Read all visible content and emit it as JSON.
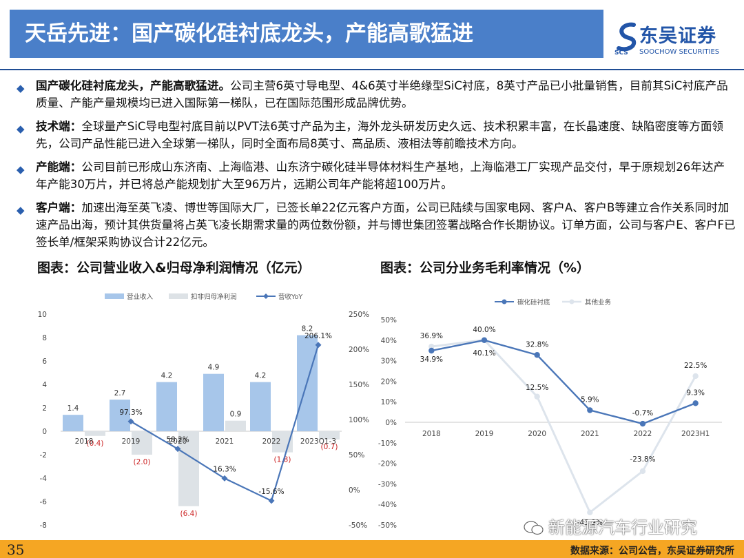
{
  "header": {
    "title": "天岳先进：国产碳化硅衬底龙头，产能高歌猛进",
    "logo_cn": "东吴证券",
    "logo_en": "SOOCHOW SECURITIES",
    "logo_abbr": "SCS"
  },
  "bullets": [
    {
      "lead": "国产碳化硅衬底龙头，产能高歌猛进。",
      "text": "公司主营6英寸导电型、4&6英寸半绝缘型SiC衬底，8英寸产品已小批量销售，目前其SiC衬底产品质量、产能产量规模均已进入国际第一梯队，已在国际范围形成品牌优势。"
    },
    {
      "lead": "技术端：",
      "text": "全球量产SiC导电型衬底目前以PVT法6英寸产品为主，海外龙头研发历史久远、技术积累丰富，在长晶速度、缺陷密度等方面领先，公司产品性能已进入全球第一梯队，同时全面布局8英寸、高品质、液相法等前瞻技术方向。"
    },
    {
      "lead": "产能端：",
      "text": "公司目前已形成山东济南、上海临港、山东济宁碳化硅半导体材料生产基地，上海临港工厂实现产品交付，早于原规划26年达产年产能30万片，并已将总产能规划扩大至96万片，远期公司年产能将超100万片。"
    },
    {
      "lead": "客户端：",
      "text": "加速出海至英飞凌、博世等国际大厂，已签长单22亿元客户方面，公司已陆续与国家电网、客户A、客户B等建立合作关系同时加速产品出海，预计其供货量将占英飞凌长期需求量的两位数份额，并与博世集团签署战略合作长期协议。订单方面，公司与客户E、客户F已签长单/框架采购协议合计22亿元。"
    }
  ],
  "sections": {
    "left_title": "图表：公司营业收入&归母净利润情况（亿元）",
    "right_title": "图表：公司分业务毛利率情况（%）"
  },
  "chart_data": [
    {
      "type": "bar",
      "categories": [
        "2018",
        "2019",
        "2020",
        "2021",
        "2022",
        "2023Q1-3"
      ],
      "series": [
        {
          "name": "营业收入",
          "kind": "bar",
          "axis": "left",
          "values": [
            1.4,
            2.7,
            4.2,
            4.9,
            4.2,
            8.2
          ],
          "labels": [
            "1.4",
            "2.7",
            "4.2",
            "4.9",
            "4.2",
            "8.2"
          ],
          "color": "#a7c6ea"
        },
        {
          "name": "扣非归母净利润",
          "kind": "bar",
          "axis": "left",
          "values": [
            -0.4,
            -2.0,
            -6.4,
            0.9,
            -1.8,
            -0.7
          ],
          "labels": [
            "(0.4)",
            "(2.0)",
            "(6.4)",
            "0.9",
            "(1.8)",
            "(0.7)"
          ],
          "color": "#dde2e6"
        },
        {
          "name": "营收YoY",
          "kind": "line",
          "axis": "right",
          "values": [
            null,
            97.3,
            58.2,
            16.3,
            -15.6,
            206.1
          ],
          "labels": [
            "",
            "97.3%",
            "58.2%",
            "16.3%",
            "-15.6%",
            "206.1%"
          ],
          "color": "#4a76b8"
        }
      ],
      "left_ticks": [
        "10",
        "8",
        "6",
        "4",
        "2",
        "0",
        "-2",
        "-4",
        "-6",
        "-8"
      ],
      "right_ticks": [
        "250%",
        "200%",
        "150%",
        "100%",
        "50%",
        "0%",
        "-50%"
      ],
      "ylim": [
        -8,
        10
      ],
      "y2lim": [
        -50,
        250
      ],
      "legend_position": "top"
    },
    {
      "type": "line",
      "categories": [
        "2018",
        "2019",
        "2020",
        "2021",
        "2022",
        "2023H1"
      ],
      "series": [
        {
          "name": "碳化硅衬底",
          "values": [
            34.9,
            40.0,
            32.8,
            5.9,
            -0.7,
            9.3
          ],
          "labels": [
            "34.9%",
            "40.0%",
            "32.8%",
            "5.9%",
            "-0.7%",
            "9.3%"
          ],
          "color": "#4a76b8"
        },
        {
          "name": "其他业务",
          "values": [
            36.9,
            40.1,
            12.5,
            -43.9,
            -23.8,
            22.5
          ],
          "labels": [
            "36.9%",
            "40.1%",
            "12.5%",
            "-43.9%",
            "-23.8%",
            "22.5%"
          ],
          "color": "#dde4ec"
        }
      ],
      "y_ticks": [
        "50%",
        "40%",
        "30%",
        "20%",
        "10%",
        "0%",
        "-10%",
        "-20%",
        "-30%",
        "-40%",
        "-50%"
      ],
      "ylim": [
        -50,
        50
      ],
      "legend_position": "top"
    }
  ],
  "footer": {
    "page": "35",
    "source": "数据来源：公司公告，东吴证券研究所"
  },
  "watermark": "新能源汽车行业研究",
  "colors": {
    "title_bar": "#4a7fc9",
    "footer_bar": "#f5a623",
    "accent": "#1f4d94",
    "negative_label": "#cc2222"
  }
}
